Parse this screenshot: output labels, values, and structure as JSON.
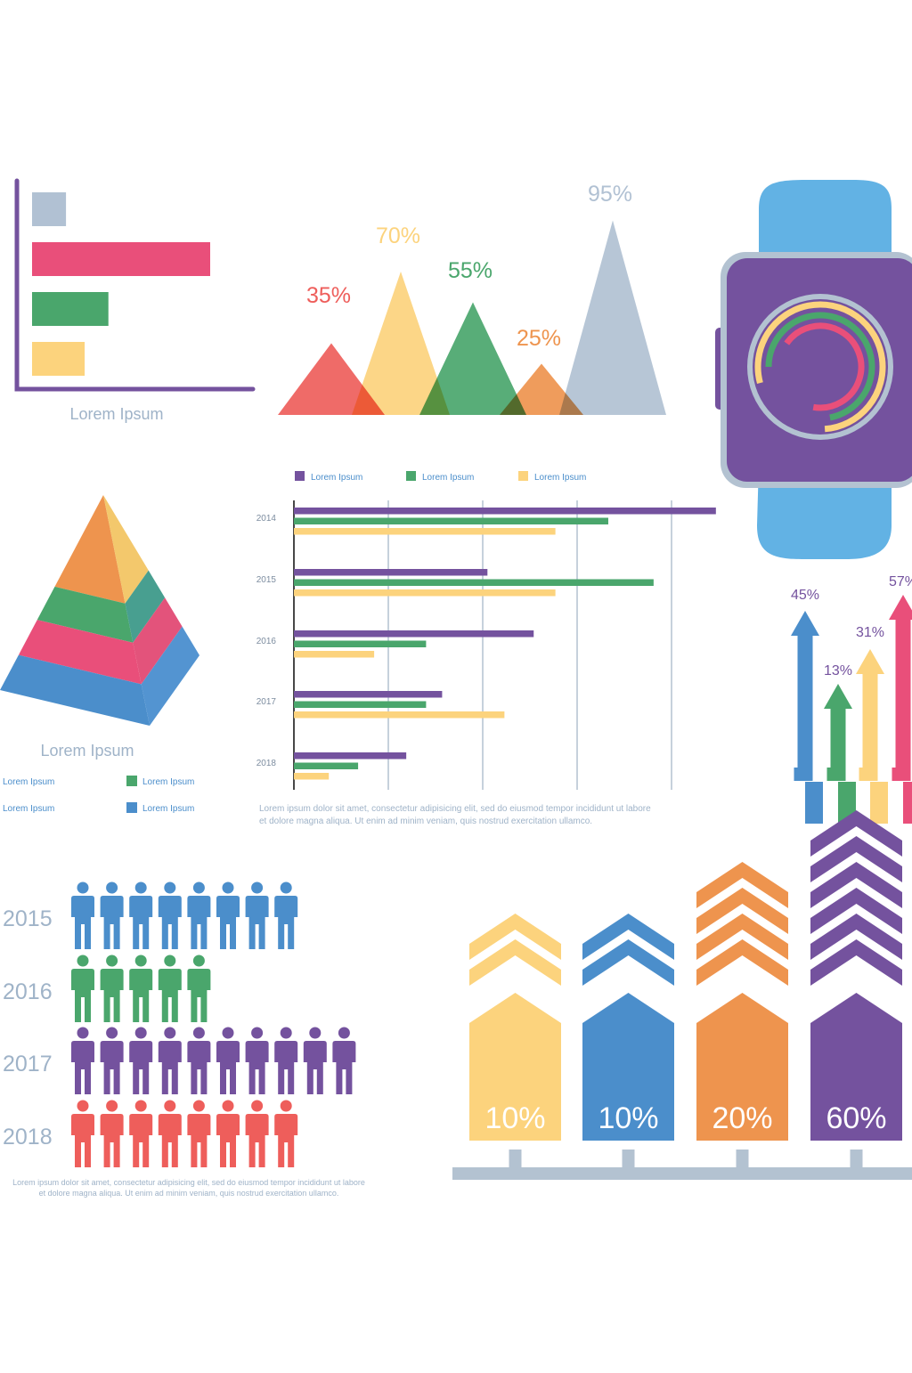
{
  "palette": {
    "purple": "#74529e",
    "pink": "#e94f7a",
    "green": "#4aa66c",
    "yellow": "#fcd37d",
    "gray": "#b1c1d3",
    "red": "#ee5e5b",
    "orange": "#ee944e",
    "blue": "#4b8ecb",
    "lightblue": "#62b2e4",
    "axisGray": "#b3c2d1",
    "caption": "#9fb3c8"
  },
  "chart_data": [
    {
      "type": "bar",
      "orientation": "horizontal",
      "title": "",
      "xlabel": "Lorem Ipsum",
      "values": [
        2,
        10.5,
        4.5,
        3.1
      ],
      "colors": [
        "#b1c1d3",
        "#e94f7a",
        "#4aa66c",
        "#fcd37d"
      ]
    },
    {
      "type": "area",
      "shape": "triangles",
      "values": [
        35,
        70,
        55,
        25,
        95
      ],
      "labels": [
        "35%",
        "70%",
        "55%",
        "25%",
        "95%"
      ],
      "colors": [
        "#ee5e5b",
        "#fcd37d",
        "#4aa66c",
        "#ee944e",
        "#b1c1d3"
      ]
    },
    {
      "type": "pie",
      "style": "concentric-rings",
      "series": [
        {
          "name": "outer",
          "value": 0.78,
          "color": "#fcd37d"
        },
        {
          "name": "middle",
          "value": 0.72,
          "color": "#4aa66c"
        },
        {
          "name": "inner",
          "value": 0.68,
          "color": "#e94f7a"
        }
      ]
    },
    {
      "type": "area",
      "shape": "pyramid",
      "xlabel": "Lorem Ipsum",
      "layers": [
        "#ee944e",
        "#4aa66c",
        "#e94f7a",
        "#4b8ecb"
      ],
      "legend": [
        {
          "label": "Lorem Ipsum",
          "color": ""
        },
        {
          "label": "Lorem Ipsum",
          "color": "#4aa66c"
        },
        {
          "label": "Lorem Ipsum",
          "color": ""
        },
        {
          "label": "Lorem Ipsum",
          "color": "#4b8ecb"
        }
      ]
    },
    {
      "type": "bar",
      "orientation": "horizontal",
      "categories": [
        "2014",
        "2015",
        "2016",
        "2017",
        "2018"
      ],
      "xlim": [
        0,
        4.5
      ],
      "gridlines": [
        1,
        2,
        3,
        4
      ],
      "series": [
        {
          "name": "Lorem Ipsum",
          "color": "#74529e",
          "values": [
            4.47,
            2.05,
            2.54,
            1.57,
            1.19
          ]
        },
        {
          "name": "Lorem Ipsum",
          "color": "#4aa66c",
          "values": [
            3.33,
            3.81,
            1.4,
            1.4,
            0.68
          ]
        },
        {
          "name": "Lorem Ipsum",
          "color": "#fcd37d",
          "values": [
            2.77,
            2.77,
            0.85,
            2.23,
            0.37
          ]
        }
      ],
      "caption_lines": [
        "Lorem ipsum dolor sit amet, consectetur adipisicing elit,  sed do eiusmod tempor incididunt ut labore",
        "et dolore magna aliqua. Ut enim ad minim veniam, quis nostrud exercitation ullamco."
      ]
    },
    {
      "type": "bar",
      "style": "arrows",
      "values": [
        45,
        13,
        31,
        57
      ],
      "labels": [
        "45%",
        "13%",
        "31%",
        "57%"
      ],
      "colors": [
        "#4b8ecb",
        "#4aa66c",
        "#fcd37d",
        "#e94f7a"
      ]
    },
    {
      "type": "bar",
      "style": "pictograph",
      "categories": [
        "2015",
        "2016",
        "2017",
        "2018"
      ],
      "values": [
        8,
        5,
        10,
        8
      ],
      "colors": [
        "#4b8ecb",
        "#4aa66c",
        "#74529e",
        "#ee5e5b"
      ],
      "caption_lines": [
        "Lorem ipsum dolor sit amet, consectetur adipisicing elit,  sed do eiusmod tempor incididunt ut labore",
        "et dolore magna aliqua. Ut enim ad minim veniam, quis nostrud exercitation ullamco."
      ]
    },
    {
      "type": "bar",
      "style": "chevron-columns",
      "values": [
        10,
        10,
        20,
        60
      ],
      "labels": [
        "10%",
        "10%",
        "20%",
        "60%"
      ],
      "chevrons": [
        2,
        2,
        4,
        6
      ],
      "colors": [
        "#fcd37d",
        "#4b8ecb",
        "#ee944e",
        "#74529e"
      ]
    }
  ]
}
